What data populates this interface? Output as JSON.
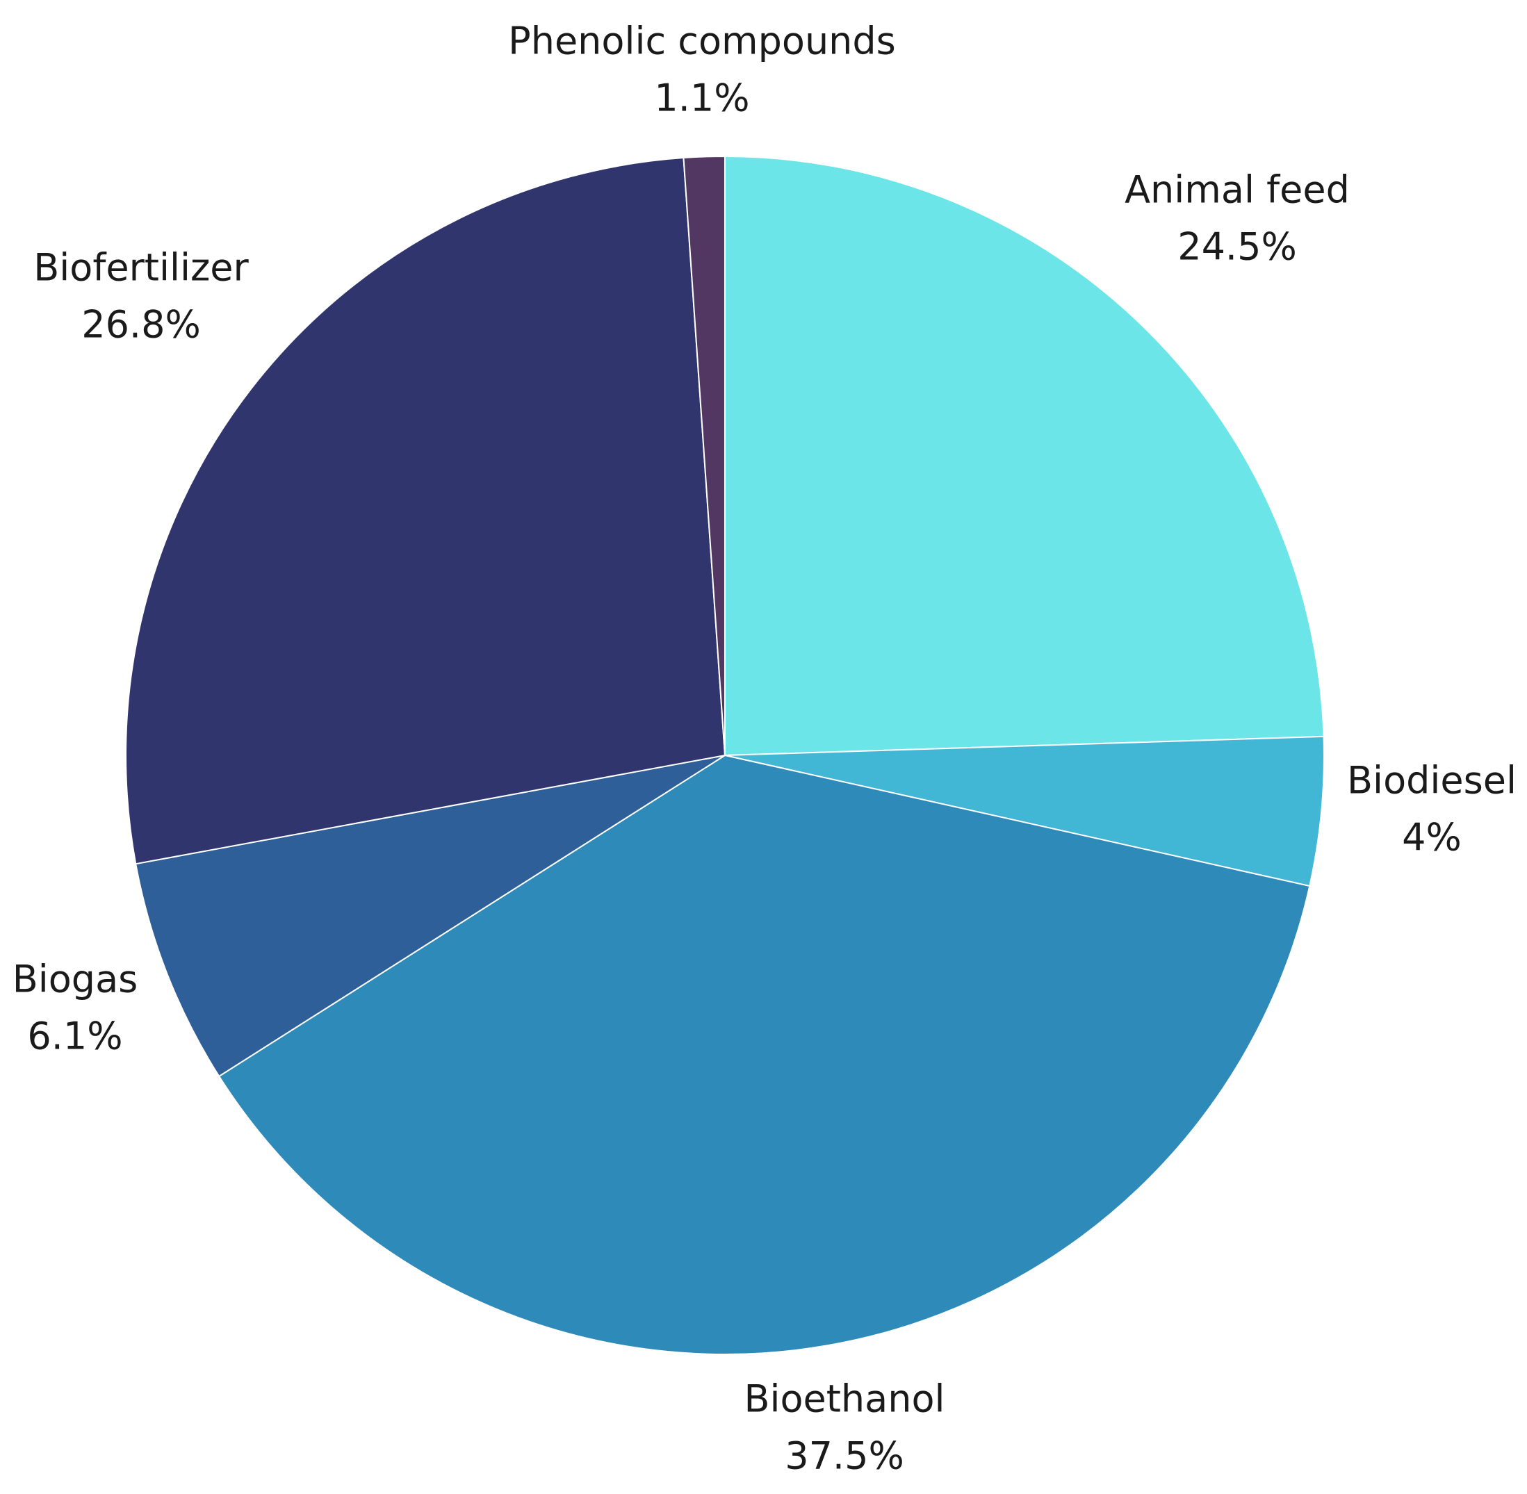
{
  "chart_data": {
    "type": "pie",
    "title": "",
    "start_angle_deg": 0,
    "direction": "clockwise",
    "slices": [
      {
        "label": "Animal feed",
        "value_text": "24.5%",
        "value": 24.5,
        "color": "#6ce5e8"
      },
      {
        "label": "Biodiesel",
        "value_text": "4%",
        "value": 4.0,
        "color": "#41b6d5"
      },
      {
        "label": "Bioethanol",
        "value_text": "37.5%",
        "value": 37.5,
        "color": "#2e8bb9"
      },
      {
        "label": "Biogas",
        "value_text": "6.1%",
        "value": 6.1,
        "color": "#2e5f98"
      },
      {
        "label": "Biofertilizer",
        "value_text": "26.8%",
        "value": 26.8,
        "color": "#31356d"
      },
      {
        "label": "Phenolic compounds",
        "value_text": "1.1%",
        "value": 1.1,
        "color": "#533763"
      }
    ]
  }
}
